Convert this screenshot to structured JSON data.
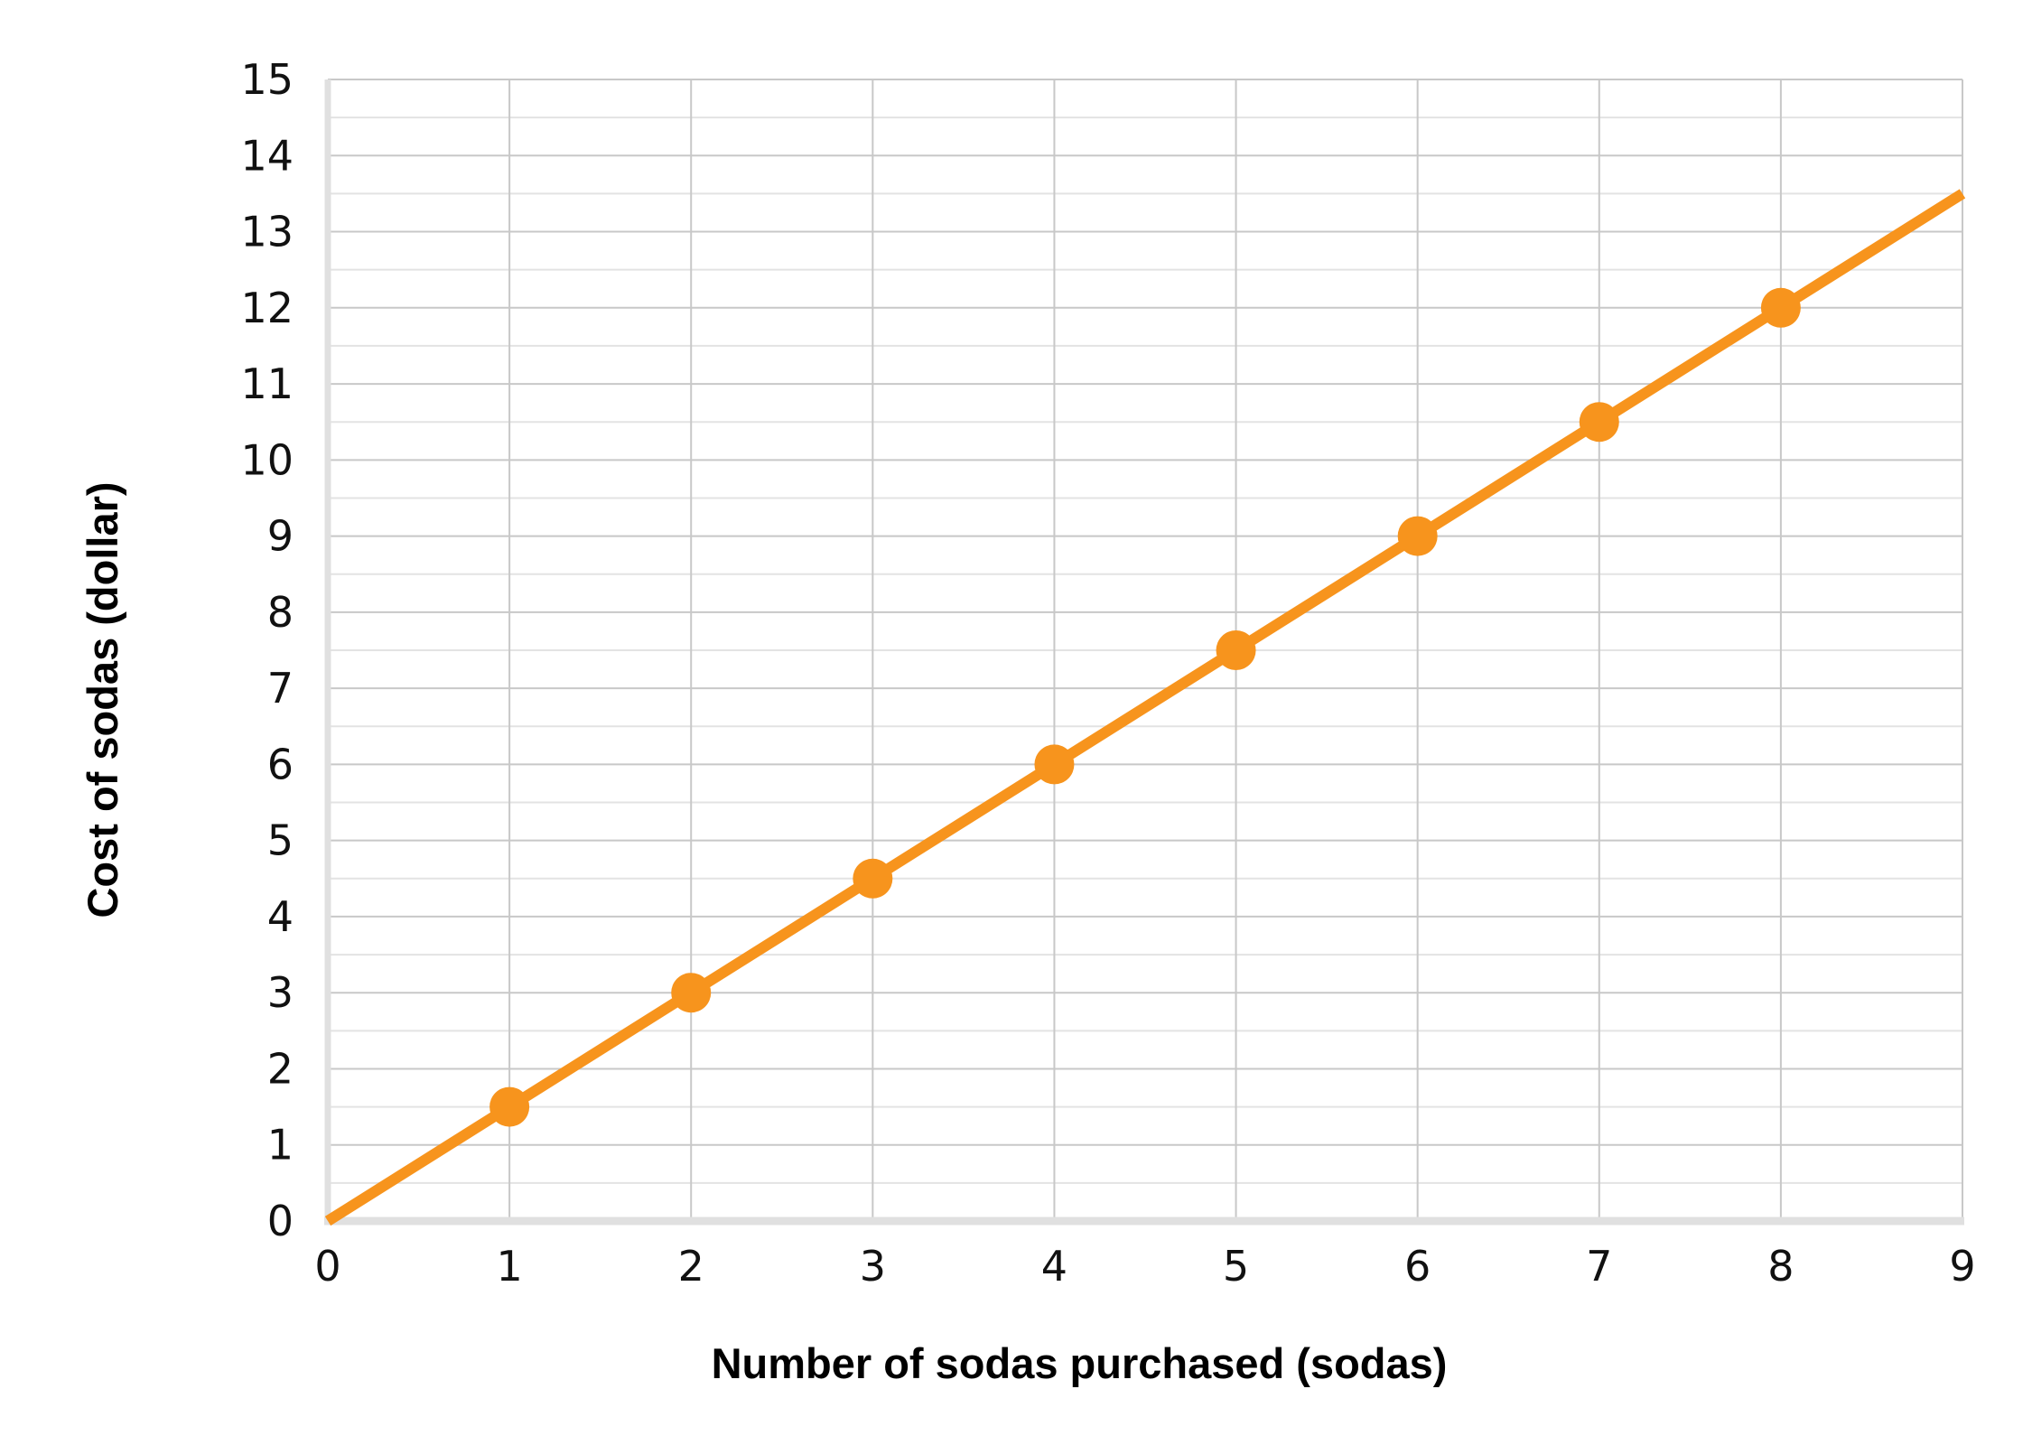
{
  "chart_data": {
    "type": "line",
    "title": "",
    "xlabel": "Number of sodas purchased (sodas)",
    "ylabel": "Cost of sodas (dollar)",
    "xlim": [
      0,
      9
    ],
    "ylim": [
      0,
      15
    ],
    "x_ticks": [
      0,
      1,
      2,
      3,
      4,
      5,
      6,
      7,
      8,
      9
    ],
    "y_ticks": [
      0,
      1,
      2,
      3,
      4,
      5,
      6,
      7,
      8,
      9,
      10,
      11,
      12,
      13,
      14,
      15
    ],
    "grid": true,
    "minor_grid_y": true,
    "series": [
      {
        "color": "#f7941d",
        "line": {
          "x": [
            0,
            9
          ],
          "y": [
            0,
            13.5
          ]
        },
        "points": {
          "x": [
            1,
            2,
            3,
            4,
            5,
            6,
            7,
            8
          ],
          "y": [
            1.5,
            3,
            4.5,
            6,
            7.5,
            9,
            10.5,
            12
          ]
        }
      }
    ],
    "colors": {
      "line": "#f7941d",
      "grid_major": "#c8c8c8",
      "grid_minor": "#e3e3e3",
      "axis": "#e0e0e0"
    }
  }
}
